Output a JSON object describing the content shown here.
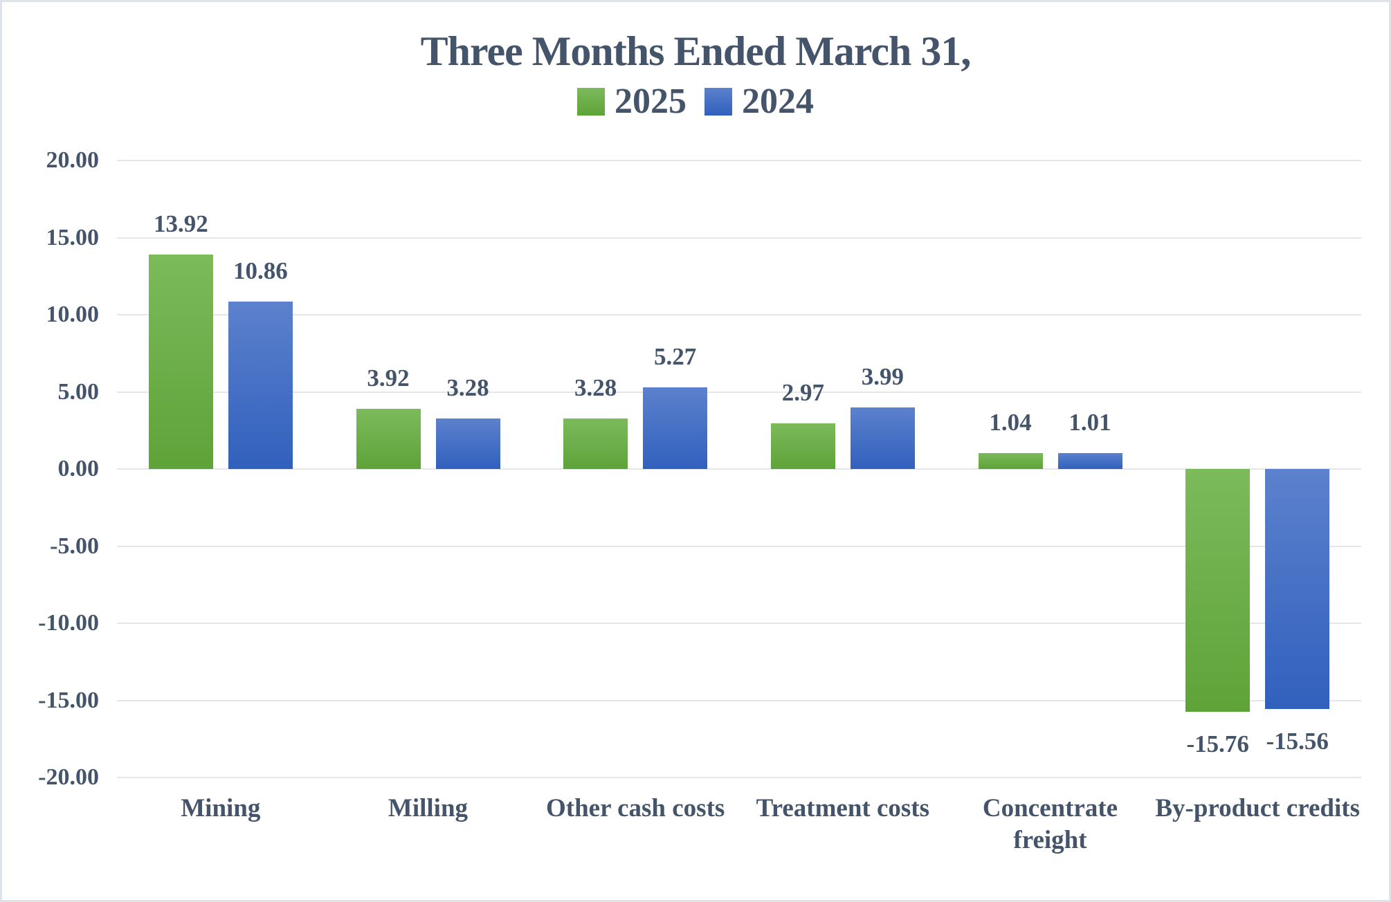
{
  "chart_data": {
    "type": "bar",
    "title": "Three Months Ended March 31,",
    "categories": [
      "Mining",
      "Milling",
      "Other cash costs",
      "Treatment costs",
      "Concentrate\nfreight",
      "By-product credits"
    ],
    "series": [
      {
        "name": "2025",
        "values": [
          13.92,
          3.92,
          3.28,
          2.97,
          1.04,
          -15.76
        ]
      },
      {
        "name": "2024",
        "values": [
          10.86,
          3.28,
          5.27,
          3.99,
          1.01,
          -15.56
        ]
      }
    ],
    "ylim": [
      -20,
      20
    ],
    "tick_step": 5,
    "tick_format_decimals": 2,
    "grid": "horizontal",
    "legend_position": "top-center",
    "data_labels": "outside-end"
  },
  "colors": {
    "text": "#44546a",
    "gridline": "#e3e6ea",
    "border": "#dfe3e9",
    "series_2025_top": "#7cba5b",
    "series_2025_bottom": "#5ea338",
    "series_2024_top": "#5c81cd",
    "series_2024_bottom": "#3160bd"
  }
}
